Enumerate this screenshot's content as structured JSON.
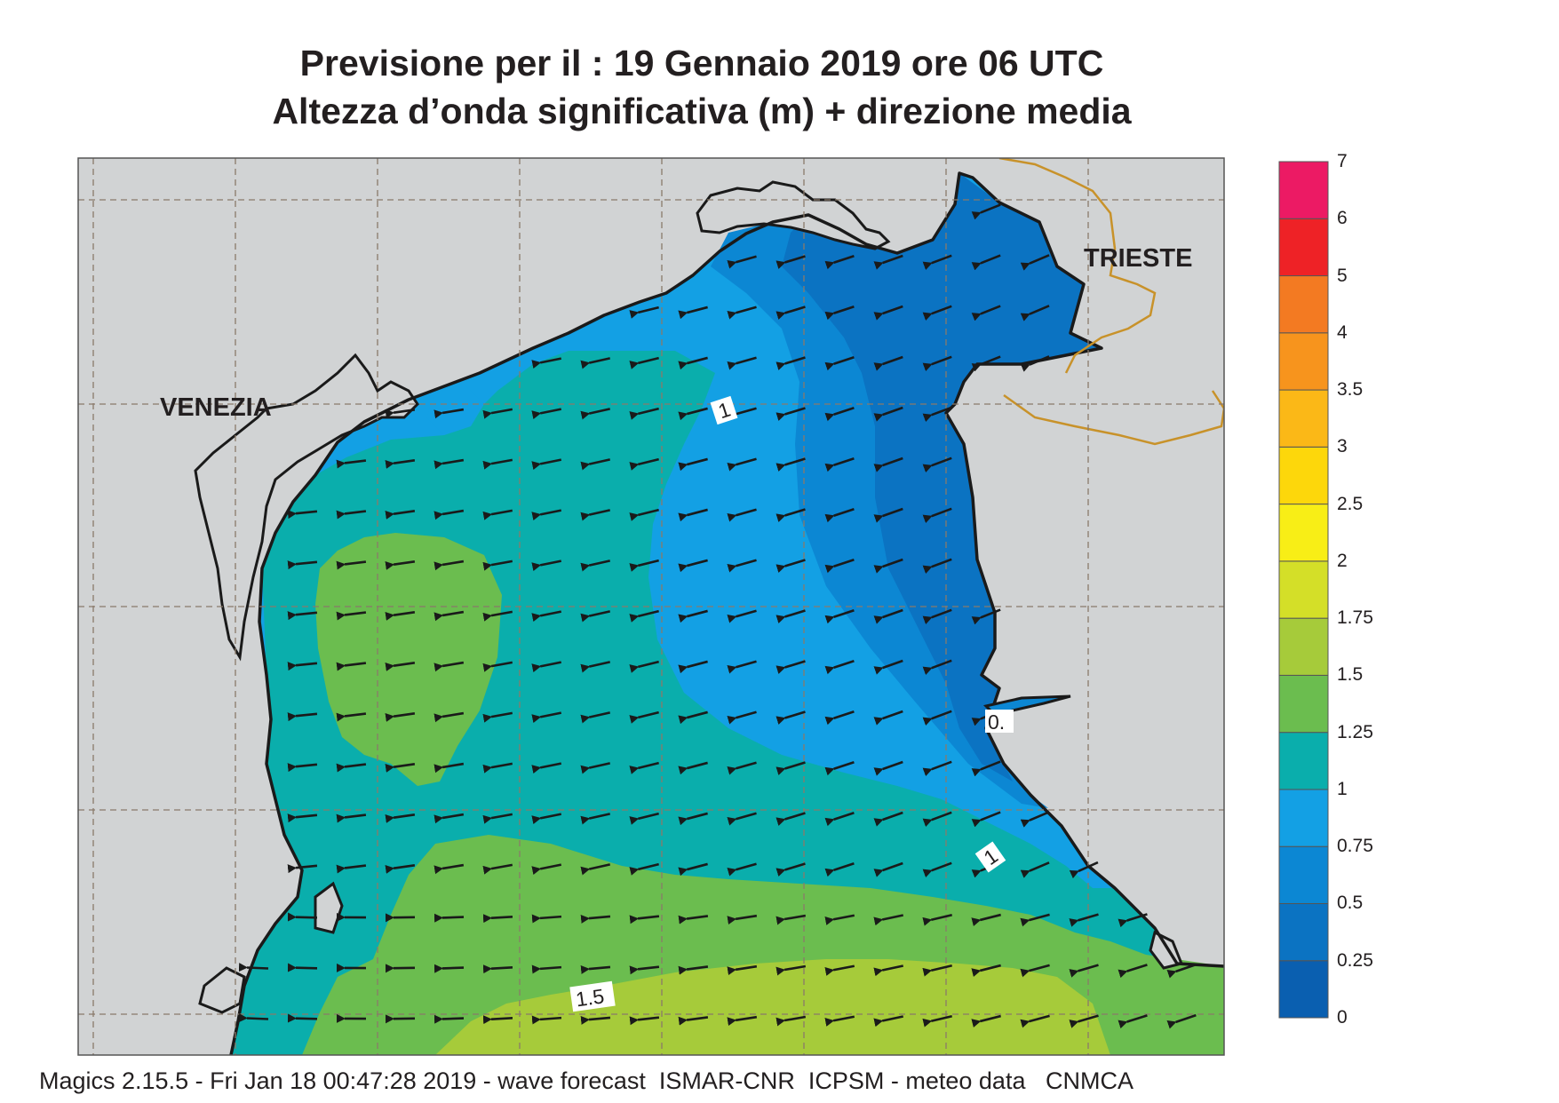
{
  "title": {
    "line1": "Previsione per il  :  19  Gennaio  2019   ore 06 UTC",
    "line2": "Altezza d’onda significativa (m) + direzione media"
  },
  "places": {
    "venezia": "VENEZIA",
    "trieste": "TRIESTE"
  },
  "contour_labels": [
    "1",
    "0.",
    "1",
    "1.5"
  ],
  "legend": {
    "levels": [
      "0",
      "0.25",
      "0.5",
      "0.75",
      "1",
      "1.25",
      "1.5",
      "1.75",
      "2",
      "2.5",
      "3",
      "3.5",
      "4",
      "5",
      "6",
      "7"
    ],
    "colors": [
      "#0a5fb0",
      "#0b73c2",
      "#0c87d3",
      "#13a0e4",
      "#0aaeac",
      "#6bbd4f",
      "#a6cb3a",
      "#d4df28",
      "#f8ee16",
      "#fdd70b",
      "#fbb817",
      "#f7941d",
      "#f37a22",
      "#ee2226",
      "#ec1a64"
    ]
  },
  "footer": "Magics 2.15.5 - Fri Jan 18 00:47:28 2019 - wave forecast  ISMAR-CNR  ICPSM - meteo data   CNMCA"
}
